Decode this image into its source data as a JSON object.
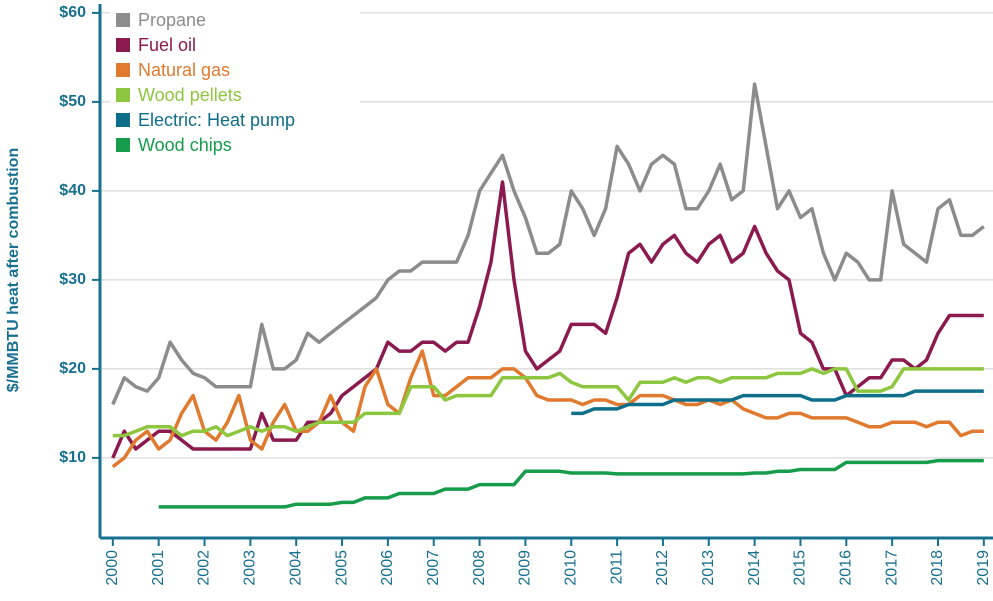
{
  "chart_data": {
    "type": "line",
    "y_label": "$/MMBTU heat after combustion",
    "x": [
      2000,
      2000.25,
      2000.5,
      2000.75,
      2001,
      2001.25,
      2001.5,
      2001.75,
      2002,
      2002.25,
      2002.5,
      2002.75,
      2003,
      2003.25,
      2003.5,
      2003.75,
      2004,
      2004.25,
      2004.5,
      2004.75,
      2005,
      2005.25,
      2005.5,
      2005.75,
      2006,
      2006.25,
      2006.5,
      2006.75,
      2007,
      2007.25,
      2007.5,
      2007.75,
      2008,
      2008.25,
      2008.5,
      2008.75,
      2009,
      2009.25,
      2009.5,
      2009.75,
      2010,
      2010.25,
      2010.5,
      2010.75,
      2011,
      2011.25,
      2011.5,
      2011.75,
      2012,
      2012.25,
      2012.5,
      2012.75,
      2013,
      2013.25,
      2013.5,
      2013.75,
      2014,
      2014.25,
      2014.5,
      2014.75,
      2015,
      2015.25,
      2015.5,
      2015.75,
      2016,
      2016.25,
      2016.5,
      2016.75,
      2017,
      2017.25,
      2017.5,
      2017.75,
      2018,
      2018.25,
      2018.5,
      2018.75,
      2019
    ],
    "series": [
      {
        "name": "Propane",
        "color": "#8c8c8c",
        "values": [
          16,
          19,
          18,
          17.5,
          19,
          23,
          21,
          19.5,
          19,
          18,
          18,
          18,
          18,
          25,
          20,
          20,
          21,
          24,
          23,
          24,
          25,
          26,
          27,
          28,
          30,
          31,
          31,
          32,
          32,
          32,
          32,
          35,
          40,
          42,
          44,
          40,
          37,
          33,
          33,
          34,
          40,
          38,
          35,
          38,
          45,
          43,
          40,
          43,
          44,
          43,
          38,
          38,
          40,
          43,
          39,
          40,
          52,
          45,
          38,
          40,
          37,
          38,
          33,
          30,
          33,
          32,
          30,
          30,
          40,
          34,
          33,
          32,
          38,
          39,
          35,
          35,
          36
        ]
      },
      {
        "name": "Fuel oil",
        "color": "#8b1a4f",
        "values": [
          10,
          13,
          11,
          12,
          13,
          13,
          12,
          11,
          11,
          11,
          11,
          11,
          11,
          15,
          12,
          12,
          12,
          14,
          14,
          15,
          17,
          18,
          19,
          20,
          23,
          22,
          22,
          23,
          23,
          22,
          23,
          23,
          27,
          32,
          41,
          30,
          22,
          20,
          21,
          22,
          25,
          25,
          25,
          24,
          28,
          33,
          34,
          32,
          34,
          35,
          33,
          32,
          34,
          35,
          32,
          33,
          36,
          33,
          31,
          30,
          24,
          23,
          20,
          20,
          17,
          18,
          19,
          19,
          21,
          21,
          20,
          21,
          24,
          26,
          26,
          26,
          26
        ]
      },
      {
        "name": "Natural gas",
        "color": "#e07a2e",
        "values": [
          9,
          10,
          12,
          13,
          11,
          12,
          15,
          17,
          13,
          12,
          14,
          17,
          12,
          11,
          14,
          16,
          13,
          13,
          14,
          17,
          14,
          13,
          18,
          20,
          16,
          15,
          19,
          22,
          17,
          17,
          18,
          19,
          19,
          19,
          20,
          20,
          19,
          17,
          16.5,
          16.5,
          16.5,
          16,
          16.5,
          16.5,
          16,
          16,
          17,
          17,
          17,
          16.5,
          16,
          16,
          16.5,
          16,
          16.5,
          15.5,
          15,
          14.5,
          14.5,
          15,
          15,
          14.5,
          14.5,
          14.5,
          14.5,
          14,
          13.5,
          13.5,
          14,
          14,
          14,
          13.5,
          14,
          14,
          12.5,
          13,
          13
        ]
      },
      {
        "name": "Wood pellets",
        "color": "#8dc63f",
        "values": [
          12.5,
          12.5,
          13,
          13.5,
          13.5,
          13.5,
          12.5,
          13,
          13,
          13.5,
          12.5,
          13,
          13.5,
          13,
          13.5,
          13.5,
          13,
          13.5,
          14,
          14,
          14,
          14,
          15,
          15,
          15,
          15,
          18,
          18,
          18,
          16.5,
          17,
          17,
          17,
          17,
          19,
          19,
          19,
          19,
          19,
          19.5,
          18.5,
          18,
          18,
          18,
          18,
          16.5,
          18.5,
          18.5,
          18.5,
          19,
          18.5,
          19,
          19,
          18.5,
          19,
          19,
          19,
          19,
          19.5,
          19.5,
          19.5,
          20,
          19.5,
          20,
          20,
          17.5,
          17.5,
          17.5,
          18,
          20,
          20,
          20,
          20,
          20,
          20,
          20,
          20
        ]
      },
      {
        "name": "Electric: Heat pump",
        "color": "#0f6e8a",
        "values": [
          null,
          null,
          null,
          null,
          null,
          null,
          null,
          null,
          null,
          null,
          null,
          null,
          null,
          null,
          null,
          null,
          null,
          null,
          null,
          null,
          null,
          null,
          null,
          null,
          null,
          null,
          null,
          null,
          null,
          null,
          null,
          null,
          null,
          null,
          null,
          null,
          null,
          null,
          null,
          null,
          15,
          15,
          15.5,
          15.5,
          15.5,
          16,
          16,
          16,
          16,
          16.5,
          16.5,
          16.5,
          16.5,
          16.5,
          16.5,
          17,
          17,
          17,
          17,
          17,
          17,
          16.5,
          16.5,
          16.5,
          17,
          17,
          17,
          17,
          17,
          17,
          17.5,
          17.5,
          17.5,
          17.5,
          17.5,
          17.5,
          17.5
        ]
      },
      {
        "name": "Wood chips",
        "color": "#169c4a",
        "values": [
          null,
          null,
          null,
          null,
          4.5,
          4.5,
          4.5,
          4.5,
          4.5,
          4.5,
          4.5,
          4.5,
          4.5,
          4.5,
          4.5,
          4.5,
          4.8,
          4.8,
          4.8,
          4.8,
          5,
          5,
          5.5,
          5.5,
          5.5,
          6,
          6,
          6,
          6,
          6.5,
          6.5,
          6.5,
          7,
          7,
          7,
          7,
          8.5,
          8.5,
          8.5,
          8.5,
          8.3,
          8.3,
          8.3,
          8.3,
          8.2,
          8.2,
          8.2,
          8.2,
          8.2,
          8.2,
          8.2,
          8.2,
          8.2,
          8.2,
          8.2,
          8.2,
          8.3,
          8.3,
          8.5,
          8.5,
          8.7,
          8.7,
          8.7,
          8.7,
          9.5,
          9.5,
          9.5,
          9.5,
          9.5,
          9.5,
          9.5,
          9.5,
          9.7,
          9.7,
          9.7,
          9.7,
          9.7
        ]
      }
    ],
    "xlim": [
      1999.72,
      2019.2
    ],
    "xticks": [
      2000,
      2001,
      2002,
      2003,
      2004,
      2005,
      2006,
      2007,
      2008,
      2009,
      2010,
      2011,
      2012,
      2013,
      2014,
      2015,
      2016,
      2017,
      2018,
      2019
    ],
    "ylim": [
      1,
      61
    ],
    "yticks": [
      {
        "value": 10,
        "label": "$10"
      },
      {
        "value": 20,
        "label": "$20"
      },
      {
        "value": 30,
        "label": "$30"
      },
      {
        "value": 40,
        "label": "$40"
      },
      {
        "value": 50,
        "label": "$50"
      },
      {
        "value": 60,
        "label": "$60"
      }
    ],
    "grid": true,
    "legend": "upper left"
  }
}
